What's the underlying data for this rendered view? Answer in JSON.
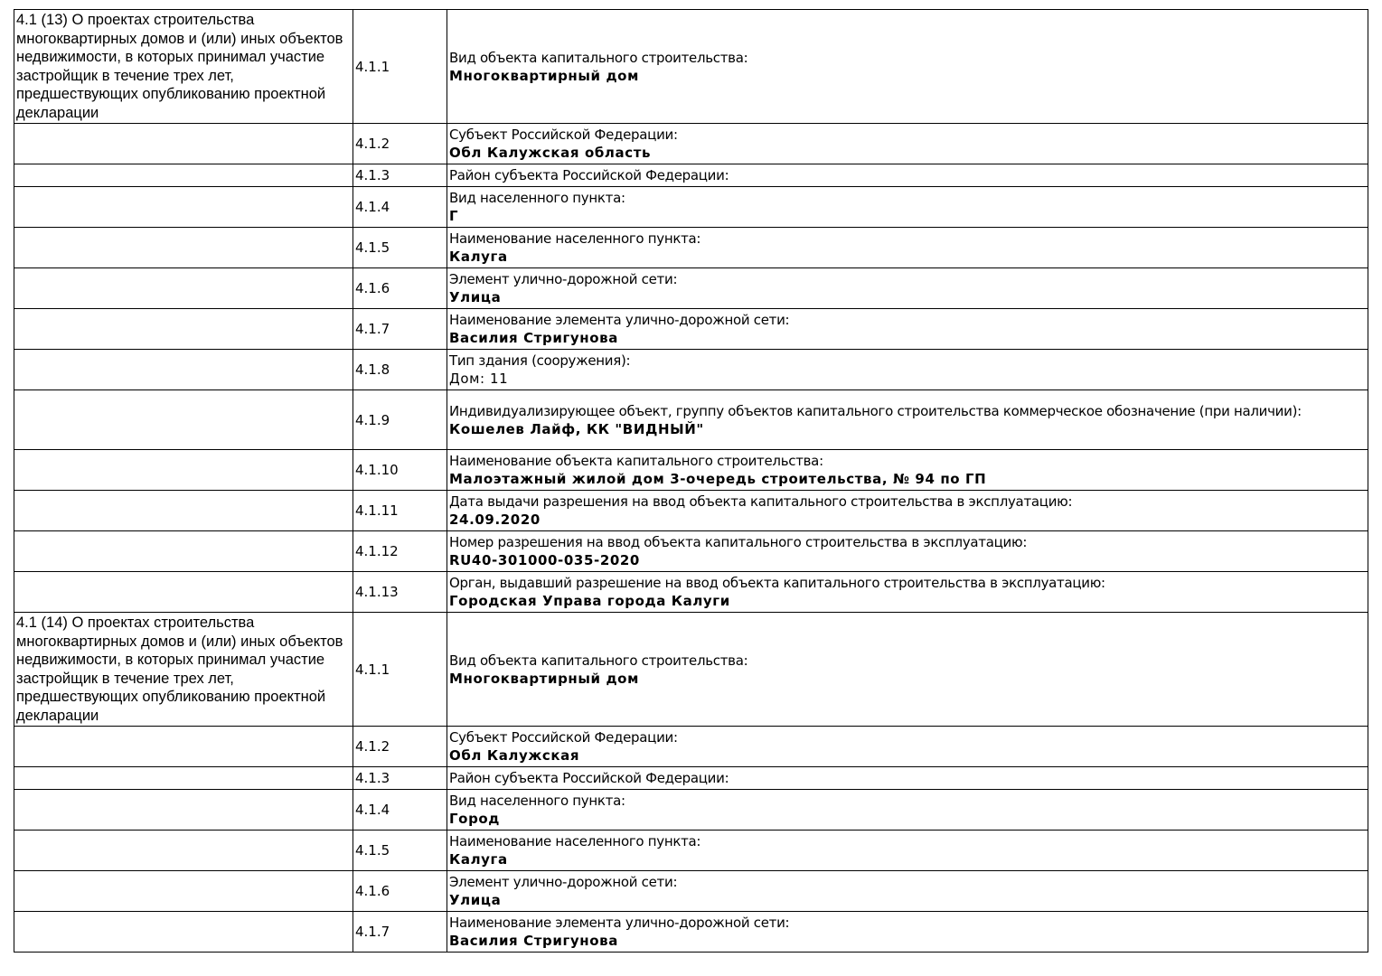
{
  "groups": [
    {
      "heading": "4.1 (13) О проектах строительства многоквартирных домов и (или) иных объектов недвижимости, в которых принимал участие застройщик в течение трех лет, предшествующих опубликованию проектной декларации",
      "rows": [
        {
          "num": "4.1.1",
          "label": "Вид объекта капитального строительства:",
          "value": "Многоквартирный дом"
        },
        {
          "num": "4.1.2",
          "label": "Субъект Российской Федерации:",
          "value": "Обл Калужская область"
        },
        {
          "num": "4.1.3",
          "label": "Район субъекта Российской Федерации:",
          "value": ""
        },
        {
          "num": "4.1.4",
          "label": "Вид населенного пункта:",
          "value": "Г"
        },
        {
          "num": "4.1.5",
          "label": "Наименование населенного пункта:",
          "value": "Калуга"
        },
        {
          "num": "4.1.6",
          "label": "Элемент улично-дорожной сети:",
          "value": "Улица"
        },
        {
          "num": "4.1.7",
          "label": "Наименование элемента улично-дорожной сети:",
          "value": "Василия Стригунова"
        },
        {
          "num": "4.1.8",
          "label": "Тип здания (сооружения):",
          "value": "Дом: 11",
          "plain": true
        },
        {
          "num": "4.1.9",
          "label": "Индивидуализирующее объект, группу объектов капитального строительства коммерческое обозначение (при наличии):",
          "value": "Кошелев Лайф, КК \"ВИДНЫЙ\""
        },
        {
          "num": "4.1.10",
          "label": "Наименование объекта капитального строительства:",
          "value": "Малоэтажный жилой дом 3-очередь строительства, № 94 по ГП"
        },
        {
          "num": "4.1.11",
          "label": "Дата выдачи разрешения на ввод объекта капитального строительства в эксплуатацию:",
          "value": "24.09.2020"
        },
        {
          "num": "4.1.12",
          "label": "Номер разрешения на ввод объекта капитального строительства в эксплуатацию:",
          "value": "RU40-301000-035-2020"
        },
        {
          "num": "4.1.13",
          "label": "Орган, выдавший разрешение на ввод объекта капитального строительства в эксплуатацию:",
          "value": "Городская Управа города Калуги"
        }
      ]
    },
    {
      "heading": "4.1 (14) О проектах строительства многоквартирных домов и (или) иных объектов недвижимости, в которых принимал участие застройщик в течение трех лет, предшествующих опубликованию проектной декларации",
      "rows": [
        {
          "num": "4.1.1",
          "label": "Вид объекта капитального строительства:",
          "value": "Многоквартирный дом"
        },
        {
          "num": "4.1.2",
          "label": "Субъект Российской Федерации:",
          "value": "Обл Калужская"
        },
        {
          "num": "4.1.3",
          "label": "Район субъекта Российской Федерации:",
          "value": ""
        },
        {
          "num": "4.1.4",
          "label": "Вид населенного пункта:",
          "value": "Город"
        },
        {
          "num": "4.1.5",
          "label": "Наименование населенного пункта:",
          "value": "Калуга"
        },
        {
          "num": "4.1.6",
          "label": "Элемент улично-дорожной сети:",
          "value": "Улица"
        },
        {
          "num": "4.1.7",
          "label": "Наименование элемента улично-дорожной сети:",
          "value": "Василия Стригунова"
        }
      ]
    }
  ]
}
